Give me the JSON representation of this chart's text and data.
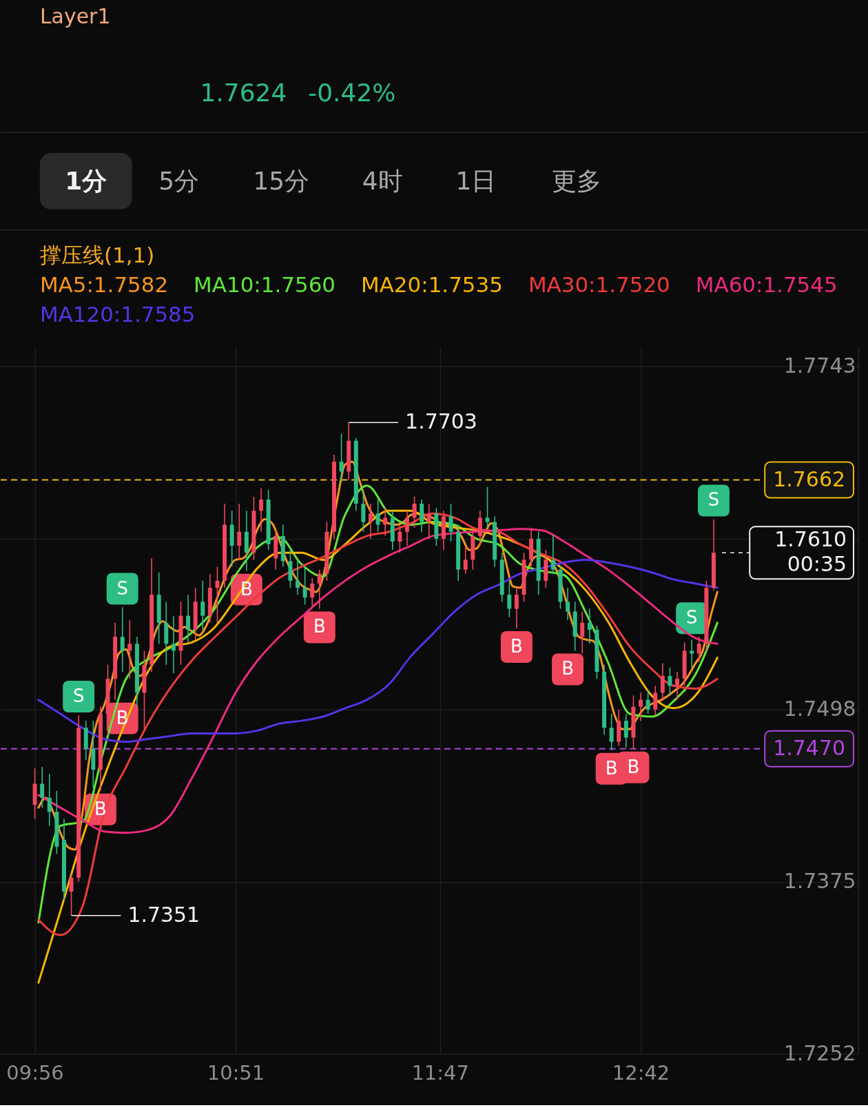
{
  "chart_data": {
    "type": "candlestick",
    "x": [
      9.9333,
      9.9667,
      10.0,
      10.0333,
      10.0667,
      10.1,
      10.1333,
      10.1667,
      10.2,
      10.2333,
      10.2667,
      10.3,
      10.3333,
      10.3667,
      10.4,
      10.4333,
      10.4667,
      10.5,
      10.5333,
      10.5667,
      10.6,
      10.6333,
      10.6667,
      10.7,
      10.7333,
      10.7667,
      10.8,
      10.8333,
      10.8667,
      10.9,
      10.9333,
      10.9667,
      11.0,
      11.0333,
      11.0667,
      11.1,
      11.1333,
      11.1667,
      11.2,
      11.2333,
      11.2667,
      11.3,
      11.3333,
      11.3667,
      11.4,
      11.4333,
      11.4667,
      11.5,
      11.5333,
      11.5667,
      11.6,
      11.6333,
      11.6667,
      11.7,
      11.7333,
      11.7667,
      11.8,
      11.8333,
      11.8667,
      11.9,
      11.9333,
      11.9667,
      12.0,
      12.0333,
      12.0667,
      12.1,
      12.1333,
      12.1667,
      12.2,
      12.2333,
      12.2667,
      12.3,
      12.3333,
      12.3667,
      12.4,
      12.4333,
      12.4667,
      12.5,
      12.5333,
      12.5667,
      12.6,
      12.6333,
      12.6667,
      12.7,
      12.7333,
      12.7667,
      12.8,
      12.8333,
      12.8667,
      12.9,
      12.9333,
      12.9667,
      13.0,
      13.0333
    ],
    "ohlc": [
      [
        1.743,
        1.7456,
        1.742,
        1.7445
      ],
      [
        1.7445,
        1.7457,
        1.7428,
        1.7435
      ],
      [
        1.7435,
        1.7452,
        1.7415,
        1.7425
      ],
      [
        1.7425,
        1.744,
        1.7395,
        1.74
      ],
      [
        1.7405,
        1.742,
        1.7362,
        1.7368
      ],
      [
        1.7368,
        1.738,
        1.7351,
        1.7378
      ],
      [
        1.7378,
        1.7494,
        1.7375,
        1.7485
      ],
      [
        1.7485,
        1.749,
        1.7462,
        1.747
      ],
      [
        1.747,
        1.749,
        1.7442,
        1.7455
      ],
      [
        1.7455,
        1.75,
        1.744,
        1.7495
      ],
      [
        1.7495,
        1.753,
        1.748,
        1.752
      ],
      [
        1.752,
        1.756,
        1.7505,
        1.755
      ],
      [
        1.755,
        1.7571,
        1.7525,
        1.754
      ],
      [
        1.754,
        1.7562,
        1.752,
        1.7545
      ],
      [
        1.7545,
        1.755,
        1.75,
        1.751
      ],
      [
        1.751,
        1.754,
        1.7484,
        1.753
      ],
      [
        1.753,
        1.7606,
        1.7525,
        1.758
      ],
      [
        1.758,
        1.7596,
        1.7545,
        1.756
      ],
      [
        1.756,
        1.7575,
        1.753,
        1.7545
      ],
      [
        1.7545,
        1.7565,
        1.7524,
        1.754
      ],
      [
        1.754,
        1.7575,
        1.753,
        1.7565
      ],
      [
        1.7565,
        1.758,
        1.7545,
        1.7555
      ],
      [
        1.7555,
        1.7585,
        1.7548,
        1.7575
      ],
      [
        1.7575,
        1.759,
        1.7555,
        1.7565
      ],
      [
        1.7565,
        1.7595,
        1.756,
        1.7585
      ],
      [
        1.7585,
        1.76,
        1.756,
        1.759
      ],
      [
        1.759,
        1.7645,
        1.7585,
        1.763
      ],
      [
        1.763,
        1.764,
        1.76,
        1.7615
      ],
      [
        1.7615,
        1.7645,
        1.7605,
        1.7625
      ],
      [
        1.7625,
        1.764,
        1.7597,
        1.761
      ],
      [
        1.761,
        1.765,
        1.7605,
        1.764
      ],
      [
        1.764,
        1.7656,
        1.7625,
        1.7648
      ],
      [
        1.7648,
        1.7655,
        1.7612,
        1.7616
      ],
      [
        1.7606,
        1.7626,
        1.7598,
        1.7622
      ],
      [
        1.7622,
        1.763,
        1.76,
        1.7604
      ],
      [
        1.7604,
        1.7612,
        1.7585,
        1.759
      ],
      [
        1.759,
        1.7605,
        1.758,
        1.7585
      ],
      [
        1.7585,
        1.76,
        1.7573,
        1.7578
      ],
      [
        1.7578,
        1.7592,
        1.7572,
        1.7588
      ],
      [
        1.7588,
        1.7598,
        1.757,
        1.7595
      ],
      [
        1.7595,
        1.7632,
        1.759,
        1.7625
      ],
      [
        1.7625,
        1.768,
        1.762,
        1.7675
      ],
      [
        1.7675,
        1.7695,
        1.766,
        1.7668
      ],
      [
        1.7668,
        1.7703,
        1.7662,
        1.769
      ],
      [
        1.769,
        1.7692,
        1.764,
        1.7645
      ],
      [
        1.7645,
        1.7655,
        1.7625,
        1.7632
      ],
      [
        1.7632,
        1.7645,
        1.762,
        1.7638
      ],
      [
        1.7638,
        1.7648,
        1.7625,
        1.763
      ],
      [
        1.763,
        1.7642,
        1.7622,
        1.7635
      ],
      [
        1.7635,
        1.764,
        1.7612,
        1.7618
      ],
      [
        1.7618,
        1.763,
        1.761,
        1.7625
      ],
      [
        1.7625,
        1.764,
        1.7615,
        1.7635
      ],
      [
        1.7635,
        1.765,
        1.7628,
        1.7645
      ],
      [
        1.7645,
        1.7648,
        1.7625,
        1.7632
      ],
      [
        1.7632,
        1.7645,
        1.762,
        1.7638
      ],
      [
        1.7638,
        1.7642,
        1.7615,
        1.762
      ],
      [
        1.762,
        1.764,
        1.7612,
        1.7636
      ],
      [
        1.7636,
        1.7645,
        1.7618,
        1.7625
      ],
      [
        1.7625,
        1.763,
        1.759,
        1.7598
      ],
      [
        1.7598,
        1.7615,
        1.7595,
        1.7605
      ],
      [
        1.7605,
        1.7628,
        1.7598,
        1.7622
      ],
      [
        1.7622,
        1.764,
        1.7615,
        1.7635
      ],
      [
        1.7635,
        1.7657,
        1.7628,
        1.7632
      ],
      [
        1.7632,
        1.7636,
        1.76,
        1.7605
      ],
      [
        1.7605,
        1.761,
        1.7575,
        1.758
      ],
      [
        1.758,
        1.759,
        1.7564,
        1.757
      ],
      [
        1.757,
        1.7585,
        1.7556,
        1.758
      ],
      [
        1.758,
        1.761,
        1.7575,
        1.7605
      ],
      [
        1.7605,
        1.7628,
        1.76,
        1.762
      ],
      [
        1.762,
        1.7625,
        1.758,
        1.759
      ],
      [
        1.759,
        1.7612,
        1.7585,
        1.7605
      ],
      [
        1.7605,
        1.7623,
        1.7595,
        1.7598
      ],
      [
        1.7598,
        1.76,
        1.757,
        1.7575
      ],
      [
        1.7575,
        1.7585,
        1.7562,
        1.7568
      ],
      [
        1.7568,
        1.7575,
        1.754,
        1.755
      ],
      [
        1.755,
        1.7568,
        1.7538,
        1.756
      ],
      [
        1.756,
        1.757,
        1.7545,
        1.7555
      ],
      [
        1.7555,
        1.7558,
        1.752,
        1.7525
      ],
      [
        1.7525,
        1.753,
        1.748,
        1.7485
      ],
      [
        1.7485,
        1.7495,
        1.7469,
        1.7475
      ],
      [
        1.7475,
        1.7498,
        1.7472,
        1.749
      ],
      [
        1.749,
        1.7495,
        1.7471,
        1.7478
      ],
      [
        1.7478,
        1.7508,
        1.747,
        1.75
      ],
      [
        1.75,
        1.751,
        1.749,
        1.7505
      ],
      [
        1.7505,
        1.7512,
        1.7495,
        1.7498
      ],
      [
        1.7498,
        1.7515,
        1.7494,
        1.751
      ],
      [
        1.751,
        1.7531,
        1.7505,
        1.7522
      ],
      [
        1.7522,
        1.7528,
        1.7508,
        1.7515
      ],
      [
        1.7515,
        1.7525,
        1.7505,
        1.752
      ],
      [
        1.752,
        1.7546,
        1.7515,
        1.754
      ],
      [
        1.754,
        1.7548,
        1.7528,
        1.7538
      ],
      [
        1.7538,
        1.755,
        1.7532,
        1.7545
      ],
      [
        1.7545,
        1.759,
        1.754,
        1.7585
      ],
      [
        1.7585,
        1.7634,
        1.7583,
        1.761
      ]
    ],
    "colors": [
      "#f0475d",
      "#2ebd85",
      "#2ebd85",
      "#2ebd85",
      "#2ebd85",
      "#f0475d",
      "#f0475d",
      "#2ebd85",
      "#2ebd85",
      "#f0475d",
      "#f0475d",
      "#f0475d",
      "#2ebd85",
      "#f0475d",
      "#2ebd85",
      "#f0475d",
      "#f0475d",
      "#2ebd85",
      "#2ebd85",
      "#2ebd85",
      "#f0475d",
      "#2ebd85",
      "#f0475d",
      "#2ebd85",
      "#f0475d",
      "#f0475d",
      "#f0475d",
      "#2ebd85",
      "#f0475d",
      "#2ebd85",
      "#f0475d",
      "#f0475d",
      "#2ebd85",
      "#f0475d",
      "#2ebd85",
      "#2ebd85",
      "#2ebd85",
      "#2ebd85",
      "#f0475d",
      "#f0475d",
      "#f0475d",
      "#f0475d",
      "#2ebd85",
      "#f0475d",
      "#2ebd85",
      "#2ebd85",
      "#f0475d",
      "#2ebd85",
      "#f0475d",
      "#2ebd85",
      "#f0475d",
      "#f0475d",
      "#f0475d",
      "#2ebd85",
      "#f0475d",
      "#2ebd85",
      "#f0475d",
      "#2ebd85",
      "#2ebd85",
      "#f0475d",
      "#f0475d",
      "#f0475d",
      "#2ebd85",
      "#2ebd85",
      "#2ebd85",
      "#2ebd85",
      "#f0475d",
      "#f0475d",
      "#f0475d",
      "#2ebd85",
      "#f0475d",
      "#2ebd85",
      "#2ebd85",
      "#2ebd85",
      "#2ebd85",
      "#f0475d",
      "#2ebd85",
      "#2ebd85",
      "#2ebd85",
      "#2ebd85",
      "#f0475d",
      "#2ebd85",
      "#f0475d",
      "#f0475d",
      "#2ebd85",
      "#f0475d",
      "#f0475d",
      "#2ebd85",
      "#f0475d",
      "#f0475d",
      "#2ebd85",
      "#f0475d",
      "#f0475d",
      "#f0475d"
    ],
    "series": [
      {
        "name": "MA5:1.7582",
        "type": "line",
        "color": "#f7941d",
        "x": [
          9.95,
          9.9833,
          10.0167,
          10.05,
          10.0833,
          10.1167,
          10.15,
          10.1833,
          10.2167,
          10.25,
          10.2833,
          10.3167,
          10.35,
          10.3833,
          10.4167,
          10.45,
          10.4833,
          10.5167,
          10.55,
          10.5833,
          10.6167,
          10.65,
          10.6833,
          10.7167,
          10.75,
          10.7833,
          10.8167,
          10.85,
          10.8833,
          10.9167,
          10.95,
          10.9833,
          11.0167,
          11.05,
          11.0833,
          11.1167,
          11.15,
          11.1833,
          11.2167,
          11.25,
          11.2833,
          11.3167,
          11.35,
          11.3833,
          11.4167,
          11.45,
          11.4833,
          11.5167,
          11.55,
          11.5833,
          11.6167,
          11.65,
          11.6833,
          11.7167,
          11.75,
          11.7833,
          11.8167,
          11.85,
          11.8833,
          11.9167,
          11.95,
          11.9833,
          12.0167,
          12.05,
          12.0833,
          12.1167,
          12.15,
          12.1833,
          12.2167,
          12.25,
          12.2833,
          12.3167,
          12.35,
          12.3833,
          12.4167,
          12.45,
          12.4833,
          12.5167,
          12.55,
          12.5833,
          12.6167,
          12.65,
          12.6833,
          12.7167,
          12.75,
          12.7833,
          12.8167,
          12.85,
          12.8833,
          12.9167,
          12.95,
          12.9833,
          13.0167,
          13.05
        ],
        "values": [
          1.7428,
          1.7435,
          1.7425,
          1.741,
          1.74,
          1.7398,
          1.7423,
          1.7464,
          1.7489,
          1.7501,
          1.7518,
          1.7538,
          1.7541,
          1.7527,
          1.7522,
          1.7535,
          1.7553,
          1.7561,
          1.7557,
          1.7554,
          1.7557,
          1.7554,
          1.7551,
          1.7558,
          1.7571,
          1.7585,
          1.7598,
          1.7605,
          1.7606,
          1.7613,
          1.7627,
          1.7634,
          1.7631,
          1.7619,
          1.7604,
          1.7594,
          1.7587,
          1.7584,
          1.7582,
          1.7593,
          1.762,
          1.765,
          1.7673,
          1.7675,
          1.7661,
          1.7645,
          1.7636,
          1.7633,
          1.7631,
          1.763,
          1.7632,
          1.7637,
          1.7638,
          1.7637,
          1.7635,
          1.7631,
          1.763,
          1.7629,
          1.7621,
          1.7612,
          1.7613,
          1.7622,
          1.7631,
          1.7625,
          1.7604,
          1.7586,
          1.7585,
          1.7598,
          1.7607,
          1.7608,
          1.7605,
          1.7597,
          1.7581,
          1.7562,
          1.755,
          1.7548,
          1.7547,
          1.7535,
          1.7512,
          1.7493,
          1.7484,
          1.7484,
          1.7492,
          1.7499,
          1.7502,
          1.7504,
          1.7507,
          1.7511,
          1.7515,
          1.7522,
          1.7531,
          1.754,
          1.7563,
          1.7582
        ]
      },
      {
        "name": "MA10:1.7560",
        "type": "line",
        "color": "#5ee83a",
        "x": [
          9.95,
          10.05,
          10.15,
          10.25,
          10.35,
          10.45,
          10.55,
          10.65,
          10.75,
          10.85,
          10.95,
          11.05,
          11.15,
          11.25,
          11.35,
          11.45,
          11.55,
          11.65,
          11.75,
          11.85,
          11.95,
          12.05,
          12.15,
          12.25,
          12.35,
          12.45,
          12.55,
          12.65,
          12.75,
          12.85,
          12.95,
          13.05
        ],
        "values": [
          1.7346,
          1.7415,
          1.7418,
          1.747,
          1.752,
          1.7534,
          1.7542,
          1.7553,
          1.7569,
          1.7594,
          1.7614,
          1.7621,
          1.7602,
          1.7593,
          1.7637,
          1.7658,
          1.7638,
          1.763,
          1.7632,
          1.763,
          1.762,
          1.7616,
          1.7602,
          1.7597,
          1.7594,
          1.7567,
          1.7532,
          1.7495,
          1.7493,
          1.7504,
          1.7523,
          1.756
        ]
      },
      {
        "name": "MA20:1.7535",
        "type": "line",
        "color": "#f7b500",
        "x": [
          9.95,
          10.05,
          10.15,
          10.25,
          10.35,
          10.45,
          10.55,
          10.65,
          10.75,
          10.85,
          10.95,
          11.05,
          11.15,
          11.25,
          11.35,
          11.45,
          11.55,
          11.65,
          11.75,
          11.85,
          11.95,
          12.05,
          12.15,
          12.25,
          12.35,
          12.45,
          12.55,
          12.65,
          12.75,
          12.85,
          12.95,
          13.05
        ],
        "values": [
          1.7303,
          1.7354,
          1.7406,
          1.745,
          1.749,
          1.7525,
          1.7543,
          1.7546,
          1.7556,
          1.7577,
          1.7599,
          1.761,
          1.761,
          1.7605,
          1.7616,
          1.763,
          1.764,
          1.764,
          1.7631,
          1.7628,
          1.7626,
          1.7622,
          1.7616,
          1.7608,
          1.7598,
          1.7583,
          1.7561,
          1.7532,
          1.7508,
          1.7499,
          1.7508,
          1.7535
        ]
      },
      {
        "name": "MA30:1.7520",
        "type": "line",
        "color": "#ef3b3b",
        "x": [
          9.95,
          10.05,
          10.15,
          10.25,
          10.35,
          10.45,
          10.55,
          10.65,
          10.75,
          10.85,
          10.95,
          11.05,
          11.15,
          11.25,
          11.35,
          11.45,
          11.55,
          11.65,
          11.75,
          11.85,
          11.95,
          12.05,
          12.15,
          12.25,
          12.35,
          12.45,
          12.55,
          12.65,
          12.75,
          12.85,
          12.95,
          13.05
        ],
        "values": [
          1.7348,
          1.7337,
          1.7357,
          1.7424,
          1.7457,
          1.7488,
          1.7513,
          1.7533,
          1.7549,
          1.7564,
          1.7579,
          1.7592,
          1.76,
          1.7607,
          1.7615,
          1.7622,
          1.7625,
          1.7631,
          1.7638,
          1.7635,
          1.7627,
          1.7625,
          1.7616,
          1.7609,
          1.7602,
          1.7587,
          1.7566,
          1.7543,
          1.7527,
          1.7515,
          1.7513,
          1.752
        ]
      },
      {
        "name": "MA60:1.7545",
        "type": "line",
        "color": "#ec2a7e",
        "x": [
          9.95,
          10.05,
          10.15,
          10.25,
          10.35,
          10.45,
          10.55,
          10.65,
          10.75,
          10.85,
          10.95,
          11.05,
          11.15,
          11.25,
          11.35,
          11.45,
          11.55,
          11.65,
          11.75,
          11.85,
          11.95,
          12.05,
          12.15,
          12.25,
          12.35,
          12.45,
          12.55,
          12.65,
          12.75,
          12.85,
          12.95,
          13.05
        ],
        "values": [
          1.7437,
          1.7428,
          1.7419,
          1.7411,
          1.741,
          1.7412,
          1.7422,
          1.7449,
          1.7479,
          1.751,
          1.7533,
          1.755,
          1.7564,
          1.7578,
          1.759,
          1.76,
          1.7608,
          1.7615,
          1.7622,
          1.7624,
          1.7625,
          1.7626,
          1.7627,
          1.7626,
          1.7618,
          1.7608,
          1.7598,
          1.7586,
          1.7573,
          1.756,
          1.7549,
          1.7545
        ]
      },
      {
        "name": "MA120:1.7585",
        "type": "line",
        "color": "#5533e6",
        "x": [
          9.95,
          10.05,
          10.15,
          10.25,
          10.35,
          10.45,
          10.55,
          10.65,
          10.75,
          10.85,
          10.95,
          11.05,
          11.15,
          11.25,
          11.35,
          11.45,
          11.55,
          11.65,
          11.75,
          11.85,
          11.95,
          12.05,
          12.15,
          12.25,
          12.35,
          12.45,
          12.55,
          12.65,
          12.75,
          12.85,
          12.95,
          13.05
        ],
        "values": [
          1.7505,
          1.7495,
          1.7485,
          1.7477,
          1.7475,
          1.7477,
          1.7479,
          1.7481,
          1.7481,
          1.7481,
          1.7483,
          1.7488,
          1.749,
          1.7493,
          1.7499,
          1.7505,
          1.7516,
          1.7536,
          1.7552,
          1.7568,
          1.758,
          1.7587,
          1.7595,
          1.7599,
          1.7603,
          1.7605,
          1.7603,
          1.76,
          1.7596,
          1.7591,
          1.7588,
          1.7585
        ]
      }
    ],
    "xlim": [
      9.7931,
      13.6783
    ],
    "xticks": [
      {
        "value": 9.9333,
        "label": "09:56"
      },
      {
        "value": 10.85,
        "label": "10:51"
      },
      {
        "value": 11.7833,
        "label": "11:47"
      },
      {
        "value": 12.7,
        "label": "12:42"
      }
    ],
    "ylim": [
      1.7252,
      1.7757
    ],
    "yticks": [
      1.7743,
      {
        "value": 1.762,
        "label": null
      },
      1.7498,
      1.7375,
      1.7252
    ],
    "grid": true,
    "legend": "top left",
    "ref_lines": [
      {
        "axis": "y",
        "value": 1.7662,
        "label": "1.7662",
        "color": "#f0b90b",
        "line_style": "dashed"
      },
      {
        "axis": "y",
        "value": 1.747,
        "label": "1.7470",
        "color": "#b045e0",
        "line_style": "dashed"
      }
    ],
    "annotations": [
      "Layer1",
      "1.7624",
      "-0.42%",
      "1分",
      "5分",
      "15分",
      "4时",
      "1日",
      "更多",
      "撑压线(1,1)",
      {
        "text": "1.7703",
        "x": 11.3667,
        "y": 1.7703
      },
      {
        "text": "1.7351",
        "x": 10.1,
        "y": 1.7351
      },
      {
        "text": "1.7610",
        "x": 13.0333,
        "y": 1.761
      },
      "00:35",
      {
        "text": "S",
        "x": 10.1333,
        "y": 1.7494
      },
      {
        "text": "B",
        "x": 10.2333,
        "y": 1.744
      },
      {
        "text": "S",
        "x": 10.3333,
        "y": 1.7571
      },
      {
        "text": "B",
        "x": 10.3333,
        "y": 1.7525
      },
      {
        "text": "B",
        "x": 10.9,
        "y": 1.7597
      },
      {
        "text": "B",
        "x": 11.2333,
        "y": 1.757
      },
      {
        "text": "B",
        "x": 12.1333,
        "y": 1.7556
      },
      {
        "text": "B",
        "x": 12.3667,
        "y": 1.7562
      },
      {
        "text": "B",
        "x": 12.5667,
        "y": 1.7469
      },
      {
        "text": "B",
        "x": 12.6667,
        "y": 1.747
      },
      {
        "text": "S",
        "x": 12.9333,
        "y": 1.7548
      },
      {
        "text": "S",
        "x": 13.0333,
        "y": 1.7634
      }
    ]
  }
}
